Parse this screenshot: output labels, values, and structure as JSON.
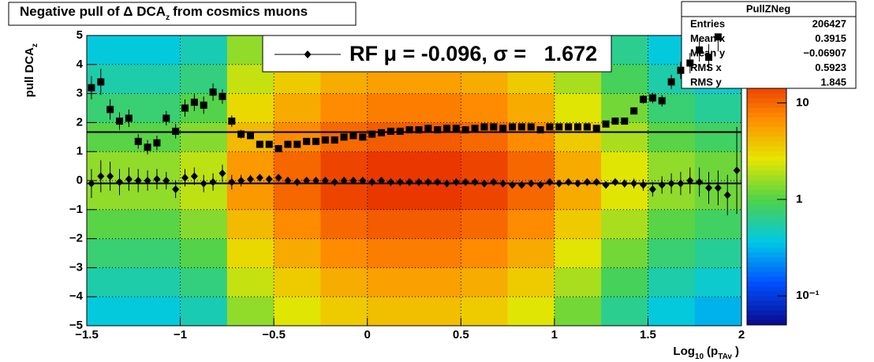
{
  "chart_data": {
    "type": "colz_profile",
    "title": [
      {
        "text": "Negative pull of Δ DCA"
      },
      {
        "text": "z",
        "sub": true
      },
      {
        "text": "from cosmics muons"
      }
    ],
    "xlabel": [
      {
        "text": "Log"
      },
      {
        "text": "10",
        "sub": true
      },
      {
        "text": "(p"
      },
      {
        "text": "TAv",
        "sub": true
      },
      {
        "text": ")"
      }
    ],
    "ylabel": [
      {
        "text": "pull DCA"
      },
      {
        "text": "z",
        "sub": true
      }
    ],
    "xlim": [
      -1.5,
      2
    ],
    "ylim": [
      -5,
      5
    ],
    "xticks": [
      {
        "value": -1.5,
        "label": "−1.5"
      },
      {
        "value": -1,
        "label": "−1"
      },
      {
        "value": -0.5,
        "label": "−0.5"
      },
      0,
      0.5,
      1,
      1.5,
      2
    ],
    "yticks": [
      {
        "value": -5,
        "label": "−5"
      },
      {
        "value": -4,
        "label": "−4"
      },
      {
        "value": -3,
        "label": "−3"
      },
      {
        "value": -2,
        "label": "−2"
      },
      {
        "value": -1,
        "label": "−1"
      },
      0,
      1,
      2,
      3,
      4,
      5
    ],
    "grid": true,
    "zlim": [
      0.05,
      50
    ],
    "zlog": true,
    "zticks": [
      {
        "value": 0.1,
        "label": "10⁻¹"
      },
      1,
      10
    ],
    "palette": [
      "#0a0a8c",
      "#0050ff",
      "#00c8e6",
      "#4cd24c",
      "#e6e600",
      "#ff8c00",
      "#e62800",
      "#8c1400"
    ],
    "heatmap": {
      "xbins": [
        -1.5,
        -1.25,
        -1,
        -0.75,
        -0.5,
        -0.25,
        0,
        0.25,
        0.5,
        0.75,
        1,
        1.25,
        1.5,
        1.75,
        2
      ],
      "ybins": [
        -5,
        -4,
        -3,
        -2,
        -1,
        0,
        1,
        2,
        3,
        4,
        5
      ],
      "z": [
        [
          0.38,
          0.53,
          0.75,
          1.05,
          1.5,
          1.5,
          1.05,
          0.75,
          0.53,
          0.38
        ],
        [
          0.38,
          0.53,
          0.75,
          1.05,
          1.5,
          1.5,
          1.05,
          0.75,
          0.53,
          0.38
        ],
        [
          0.5,
          0.7,
          1,
          1.4,
          2,
          2,
          1.4,
          1,
          0.7,
          0.5
        ],
        [
          1.5,
          2.1,
          3,
          4.2,
          6,
          6,
          4.2,
          3,
          2.1,
          1.5
        ],
        [
          2.5,
          3.5,
          5,
          7,
          10,
          10,
          7,
          5,
          3.5,
          2.5
        ],
        [
          3.5,
          4.9,
          7,
          9.8,
          14,
          14,
          9.8,
          7,
          4.9,
          3.5
        ],
        [
          4,
          5.6,
          8,
          11.2,
          16,
          16,
          11.2,
          8,
          5.6,
          4
        ],
        [
          4,
          5.6,
          8,
          11.2,
          16,
          16,
          11.2,
          8,
          5.6,
          4
        ],
        [
          3.5,
          4.9,
          7,
          9.8,
          14,
          14,
          9.8,
          7,
          4.9,
          3.5
        ],
        [
          2.5,
          3.5,
          5,
          7,
          10,
          10,
          7,
          5,
          3.5,
          2.5
        ],
        [
          1.25,
          1.75,
          2.5,
          3.5,
          5,
          5,
          3.5,
          2.5,
          1.75,
          1.25
        ],
        [
          0.63,
          0.88,
          1.25,
          1.75,
          2.5,
          2.5,
          1.75,
          1.25,
          0.88,
          0.63
        ],
        [
          0.38,
          0.53,
          0.75,
          1.05,
          1.5,
          1.5,
          1.05,
          0.75,
          0.53,
          0.38
        ],
        [
          0.3,
          0.42,
          0.6,
          0.84,
          1.2,
          1.2,
          0.84,
          0.6,
          0.42,
          0.3
        ]
      ]
    },
    "x": [
      -1.475,
      -1.425,
      -1.375,
      -1.325,
      -1.275,
      -1.225,
      -1.175,
      -1.125,
      -1.075,
      -1.025,
      -0.975,
      -0.925,
      -0.875,
      -0.825,
      -0.775,
      -0.725,
      -0.675,
      -0.625,
      -0.575,
      -0.525,
      -0.475,
      -0.425,
      -0.375,
      -0.325,
      -0.275,
      -0.225,
      -0.175,
      -0.125,
      -0.075,
      -0.025,
      0.025,
      0.075,
      0.125,
      0.175,
      0.225,
      0.275,
      0.325,
      0.375,
      0.425,
      0.475,
      0.525,
      0.575,
      0.625,
      0.675,
      0.725,
      0.775,
      0.825,
      0.875,
      0.925,
      0.975,
      1.025,
      1.075,
      1.125,
      1.175,
      1.225,
      1.275,
      1.325,
      1.375,
      1.425,
      1.475,
      1.525,
      1.575,
      1.625,
      1.675,
      1.725,
      1.775,
      1.825,
      1.875,
      1.925,
      1.975
    ],
    "series": [
      {
        "marker": "diamond",
        "color": "#000000",
        "values": [
          -0.1,
          0.15,
          0.15,
          -0.05,
          0.05,
          0.0,
          0.0,
          0.05,
          0.0,
          -0.3,
          0.1,
          0.15,
          -0.1,
          -0.05,
          0.25,
          -0.05,
          0.0,
          0.05,
          0.1,
          0.05,
          0.1,
          0.0,
          -0.05,
          0.0,
          0.0,
          0.0,
          -0.05,
          0.0,
          0.0,
          0.0,
          -0.05,
          0.0,
          -0.05,
          -0.05,
          -0.05,
          -0.05,
          -0.05,
          -0.05,
          -0.1,
          -0.05,
          -0.05,
          -0.05,
          -0.1,
          -0.05,
          -0.1,
          -0.15,
          -0.15,
          -0.1,
          -0.15,
          -0.05,
          -0.1,
          -0.05,
          -0.1,
          -0.05,
          -0.05,
          -0.15,
          -0.05,
          -0.1,
          -0.1,
          -0.15,
          -0.3,
          -0.15,
          -0.1,
          -0.1,
          0.0,
          -0.05,
          -0.25,
          -0.25,
          -0.5,
          0.35
        ],
        "errors": [
          0.5,
          0.55,
          0.5,
          0.45,
          0.4,
          0.4,
          0.35,
          0.35,
          0.3,
          0.3,
          0.3,
          0.3,
          0.3,
          0.3,
          0.3,
          0.25,
          0.2,
          0.15,
          0.12,
          0.1,
          0.08,
          0.07,
          0.06,
          0.05,
          0.05,
          0.05,
          0.05,
          0.05,
          0.05,
          0.05,
          0.05,
          0.05,
          0.05,
          0.05,
          0.05,
          0.05,
          0.05,
          0.05,
          0.05,
          0.05,
          0.05,
          0.05,
          0.05,
          0.05,
          0.05,
          0.05,
          0.05,
          0.05,
          0.05,
          0.05,
          0.06,
          0.06,
          0.07,
          0.08,
          0.09,
          0.1,
          0.12,
          0.14,
          0.17,
          0.2,
          0.25,
          0.3,
          0.35,
          0.4,
          0.45,
          0.5,
          0.55,
          0.6,
          0.7,
          1.5
        ]
      },
      {
        "marker": "square",
        "color": "#000000",
        "values": [
          3.2,
          3.4,
          2.45,
          2.05,
          2.15,
          1.35,
          1.15,
          1.3,
          2.15,
          1.7,
          2.5,
          2.7,
          2.6,
          3.05,
          2.9,
          2.05,
          1.6,
          1.55,
          1.25,
          1.25,
          1.1,
          1.25,
          1.25,
          1.35,
          1.35,
          1.4,
          1.4,
          1.5,
          1.55,
          1.5,
          1.6,
          1.65,
          1.7,
          1.7,
          1.75,
          1.75,
          1.8,
          1.75,
          1.8,
          1.8,
          1.75,
          1.8,
          1.85,
          1.85,
          1.8,
          1.85,
          1.85,
          1.85,
          1.75,
          1.85,
          1.85,
          1.85,
          1.85,
          1.85,
          1.8,
          1.95,
          2.05,
          2.05,
          2.4,
          2.8,
          2.85,
          2.75,
          3.4,
          3.8,
          4.05,
          4.5,
          4.25,
          4.95,
          null,
          null
        ],
        "errors": [
          0.4,
          0.45,
          0.35,
          0.3,
          0.3,
          0.25,
          0.25,
          0.25,
          0.25,
          0.25,
          0.3,
          0.3,
          0.3,
          0.3,
          0.25,
          0.2,
          0.15,
          0.1,
          0.08,
          0.07,
          0.06,
          0.05,
          0.04,
          0.04,
          0.04,
          0.04,
          0.04,
          0.04,
          0.04,
          0.04,
          0.04,
          0.04,
          0.04,
          0.04,
          0.04,
          0.04,
          0.04,
          0.04,
          0.04,
          0.04,
          0.04,
          0.04,
          0.04,
          0.04,
          0.04,
          0.04,
          0.04,
          0.04,
          0.04,
          0.04,
          0.04,
          0.05,
          0.05,
          0.06,
          0.07,
          0.08,
          0.09,
          0.1,
          0.12,
          0.15,
          0.18,
          0.2,
          0.25,
          0.3,
          0.35,
          0.4,
          0.45,
          0.5,
          null,
          null
        ]
      }
    ],
    "fit_lines": [
      -0.096,
      1.672
    ],
    "legend": {
      "text": "RF μ = -0.096, σ =   1.672"
    },
    "stats": {
      "title": "PullZNeg",
      "rows": [
        [
          "Entries",
          "206427"
        ],
        [
          "Mean x",
          "0.3915"
        ],
        [
          "Mean y",
          "−0.06907"
        ],
        [
          "RMS x",
          "0.5923"
        ],
        [
          "RMS y",
          "1.845"
        ]
      ]
    }
  }
}
